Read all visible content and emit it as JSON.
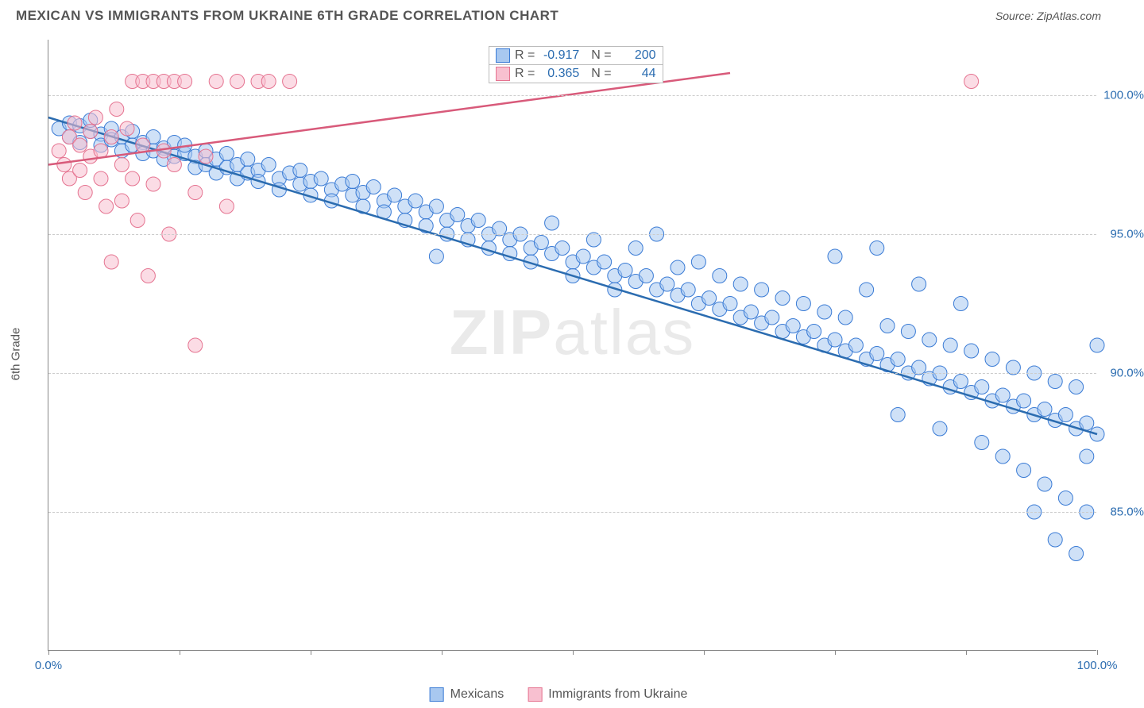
{
  "title": "MEXICAN VS IMMIGRANTS FROM UKRAINE 6TH GRADE CORRELATION CHART",
  "source": "Source: ZipAtlas.com",
  "ylabel": "6th Grade",
  "watermark": "ZIPatlas",
  "chart": {
    "type": "scatter",
    "xlim": [
      0,
      100
    ],
    "ylim": [
      80,
      102
    ],
    "xtick_positions": [
      0,
      12.5,
      25,
      37.5,
      50,
      62.5,
      75,
      87.5,
      100
    ],
    "xtick_labels": {
      "0": "0.0%",
      "100": "100.0%"
    },
    "ytick_positions": [
      85,
      90,
      95,
      100
    ],
    "ytick_labels": [
      "85.0%",
      "90.0%",
      "95.0%",
      "100.0%"
    ],
    "grid_color": "#cccccc",
    "background_color": "#ffffff",
    "axis_color": "#888888",
    "tick_label_color": "#2b6cb0",
    "axis_label_color": "#555555",
    "marker_radius": 9,
    "marker_opacity": 0.55,
    "line_width": 2.5
  },
  "series": [
    {
      "name": "Mexicans",
      "color_fill": "#a8c8f0",
      "color_stroke": "#3a7bd5",
      "line_color": "#2b6cb0",
      "R": "-0.917",
      "N": "200",
      "trend": {
        "x1": 0,
        "y1": 99.2,
        "x2": 100,
        "y2": 87.8
      },
      "points": [
        [
          1,
          98.8
        ],
        [
          2,
          99.0
        ],
        [
          2,
          98.5
        ],
        [
          3,
          98.9
        ],
        [
          3,
          98.3
        ],
        [
          4,
          98.7
        ],
        [
          4,
          99.1
        ],
        [
          5,
          98.6
        ],
        [
          5,
          98.2
        ],
        [
          6,
          98.8
        ],
        [
          6,
          98.4
        ],
        [
          7,
          98.5
        ],
        [
          7,
          98.0
        ],
        [
          8,
          98.7
        ],
        [
          8,
          98.2
        ],
        [
          9,
          98.3
        ],
        [
          9,
          97.9
        ],
        [
          10,
          98.5
        ],
        [
          10,
          98.0
        ],
        [
          11,
          98.1
        ],
        [
          11,
          97.7
        ],
        [
          12,
          98.3
        ],
        [
          12,
          97.8
        ],
        [
          13,
          97.9
        ],
        [
          13,
          98.2
        ],
        [
          14,
          97.8
        ],
        [
          14,
          97.4
        ],
        [
          15,
          98.0
        ],
        [
          15,
          97.5
        ],
        [
          16,
          97.7
        ],
        [
          16,
          97.2
        ],
        [
          17,
          97.9
        ],
        [
          17,
          97.4
        ],
        [
          18,
          97.5
        ],
        [
          18,
          97.0
        ],
        [
          19,
          97.7
        ],
        [
          19,
          97.2
        ],
        [
          20,
          97.3
        ],
        [
          20,
          96.9
        ],
        [
          21,
          97.5
        ],
        [
          22,
          97.0
        ],
        [
          22,
          96.6
        ],
        [
          23,
          97.2
        ],
        [
          24,
          96.8
        ],
        [
          24,
          97.3
        ],
        [
          25,
          96.9
        ],
        [
          25,
          96.4
        ],
        [
          26,
          97.0
        ],
        [
          27,
          96.6
        ],
        [
          27,
          96.2
        ],
        [
          28,
          96.8
        ],
        [
          29,
          96.4
        ],
        [
          29,
          96.9
        ],
        [
          30,
          96.5
        ],
        [
          30,
          96.0
        ],
        [
          31,
          96.7
        ],
        [
          32,
          96.2
        ],
        [
          32,
          95.8
        ],
        [
          33,
          96.4
        ],
        [
          34,
          96.0
        ],
        [
          34,
          95.5
        ],
        [
          35,
          96.2
        ],
        [
          36,
          95.8
        ],
        [
          36,
          95.3
        ],
        [
          37,
          96.0
        ],
        [
          37,
          94.2
        ],
        [
          38,
          95.5
        ],
        [
          38,
          95.0
        ],
        [
          39,
          95.7
        ],
        [
          40,
          95.3
        ],
        [
          40,
          94.8
        ],
        [
          41,
          95.5
        ],
        [
          42,
          95.0
        ],
        [
          42,
          94.5
        ],
        [
          43,
          95.2
        ],
        [
          44,
          94.8
        ],
        [
          44,
          94.3
        ],
        [
          45,
          95.0
        ],
        [
          46,
          94.5
        ],
        [
          46,
          94.0
        ],
        [
          47,
          94.7
        ],
        [
          48,
          94.3
        ],
        [
          48,
          95.4
        ],
        [
          49,
          94.5
        ],
        [
          50,
          94.0
        ],
        [
          50,
          93.5
        ],
        [
          51,
          94.2
        ],
        [
          52,
          93.8
        ],
        [
          52,
          94.8
        ],
        [
          53,
          94.0
        ],
        [
          54,
          93.5
        ],
        [
          54,
          93.0
        ],
        [
          55,
          93.7
        ],
        [
          56,
          93.3
        ],
        [
          56,
          94.5
        ],
        [
          57,
          93.5
        ],
        [
          58,
          93.0
        ],
        [
          58,
          95.0
        ],
        [
          59,
          93.2
        ],
        [
          60,
          92.8
        ],
        [
          60,
          93.8
        ],
        [
          61,
          93.0
        ],
        [
          62,
          92.5
        ],
        [
          62,
          94.0
        ],
        [
          63,
          92.7
        ],
        [
          64,
          92.3
        ],
        [
          64,
          93.5
        ],
        [
          65,
          92.5
        ],
        [
          66,
          92.0
        ],
        [
          66,
          93.2
        ],
        [
          67,
          92.2
        ],
        [
          68,
          91.8
        ],
        [
          68,
          93.0
        ],
        [
          69,
          92.0
        ],
        [
          70,
          91.5
        ],
        [
          70,
          92.7
        ],
        [
          71,
          91.7
        ],
        [
          72,
          91.3
        ],
        [
          72,
          92.5
        ],
        [
          73,
          91.5
        ],
        [
          74,
          91.0
        ],
        [
          74,
          92.2
        ],
        [
          75,
          91.2
        ],
        [
          75,
          94.2
        ],
        [
          76,
          90.8
        ],
        [
          76,
          92.0
        ],
        [
          77,
          91.0
        ],
        [
          78,
          90.5
        ],
        [
          78,
          93.0
        ],
        [
          79,
          90.7
        ],
        [
          79,
          94.5
        ],
        [
          80,
          90.3
        ],
        [
          80,
          91.7
        ],
        [
          81,
          90.5
        ],
        [
          81,
          88.5
        ],
        [
          82,
          90.0
        ],
        [
          82,
          91.5
        ],
        [
          83,
          90.2
        ],
        [
          83,
          93.2
        ],
        [
          84,
          89.8
        ],
        [
          84,
          91.2
        ],
        [
          85,
          90.0
        ],
        [
          85,
          88.0
        ],
        [
          86,
          89.5
        ],
        [
          86,
          91.0
        ],
        [
          87,
          89.7
        ],
        [
          87,
          92.5
        ],
        [
          88,
          89.3
        ],
        [
          88,
          90.8
        ],
        [
          89,
          89.5
        ],
        [
          89,
          87.5
        ],
        [
          90,
          89.0
        ],
        [
          90,
          90.5
        ],
        [
          91,
          89.2
        ],
        [
          91,
          87.0
        ],
        [
          92,
          88.8
        ],
        [
          92,
          90.2
        ],
        [
          93,
          89.0
        ],
        [
          93,
          86.5
        ],
        [
          94,
          88.5
        ],
        [
          94,
          90.0
        ],
        [
          94,
          85.0
        ],
        [
          95,
          88.7
        ],
        [
          95,
          86.0
        ],
        [
          96,
          88.3
        ],
        [
          96,
          89.7
        ],
        [
          96,
          84.0
        ],
        [
          97,
          88.5
        ],
        [
          97,
          85.5
        ],
        [
          98,
          88.0
        ],
        [
          98,
          89.5
        ],
        [
          98,
          83.5
        ],
        [
          99,
          88.2
        ],
        [
          99,
          85.0
        ],
        [
          99,
          87.0
        ],
        [
          100,
          91.0
        ],
        [
          100,
          87.8
        ]
      ]
    },
    {
      "name": "Immigrants from Ukraine",
      "color_fill": "#f8c0d0",
      "color_stroke": "#e57390",
      "line_color": "#d85a7a",
      "R": "0.365",
      "N": "44",
      "trend": {
        "x1": 0,
        "y1": 97.5,
        "x2": 65,
        "y2": 100.8
      },
      "points": [
        [
          1,
          98.0
        ],
        [
          1.5,
          97.5
        ],
        [
          2,
          98.5
        ],
        [
          2,
          97.0
        ],
        [
          2.5,
          99.0
        ],
        [
          3,
          97.3
        ],
        [
          3,
          98.2
        ],
        [
          3.5,
          96.5
        ],
        [
          4,
          98.7
        ],
        [
          4,
          97.8
        ],
        [
          4.5,
          99.2
        ],
        [
          5,
          97.0
        ],
        [
          5,
          98.0
        ],
        [
          5.5,
          96.0
        ],
        [
          6,
          98.5
        ],
        [
          6,
          94.0
        ],
        [
          6.5,
          99.5
        ],
        [
          7,
          97.5
        ],
        [
          7,
          96.2
        ],
        [
          7.5,
          98.8
        ],
        [
          8,
          100.5
        ],
        [
          8,
          97.0
        ],
        [
          8.5,
          95.5
        ],
        [
          9,
          100.5
        ],
        [
          9,
          98.2
        ],
        [
          9.5,
          93.5
        ],
        [
          10,
          100.5
        ],
        [
          10,
          96.8
        ],
        [
          11,
          100.5
        ],
        [
          11,
          98.0
        ],
        [
          11.5,
          95.0
        ],
        [
          12,
          100.5
        ],
        [
          12,
          97.5
        ],
        [
          13,
          100.5
        ],
        [
          14,
          96.5
        ],
        [
          14,
          91.0
        ],
        [
          15,
          97.8
        ],
        [
          16,
          100.5
        ],
        [
          17,
          96.0
        ],
        [
          18,
          100.5
        ],
        [
          20,
          100.5
        ],
        [
          21,
          100.5
        ],
        [
          23,
          100.5
        ],
        [
          88,
          100.5
        ]
      ]
    }
  ],
  "legend": {
    "items": [
      "Mexicans",
      "Immigrants from Ukraine"
    ]
  }
}
